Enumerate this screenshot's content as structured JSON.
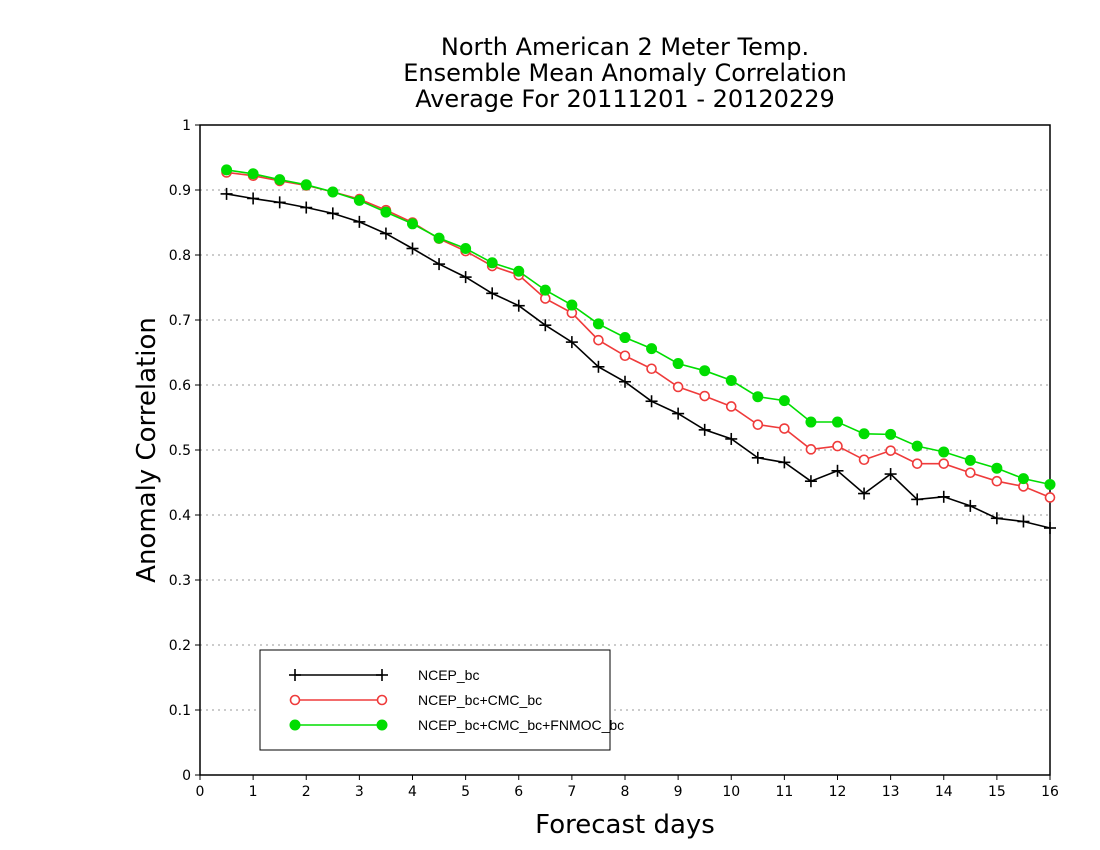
{
  "chart_data": {
    "type": "line",
    "title": [
      "North American 2 Meter Temp.",
      "Ensemble Mean Anomaly Correlation",
      "Average For 20111201 - 20120229"
    ],
    "xlabel": "Forecast days",
    "ylabel": "Anomaly Correlation",
    "xlim": [
      0,
      16
    ],
    "ylim": [
      0,
      1
    ],
    "xticks": [
      "0",
      "1",
      "2",
      "3",
      "4",
      "5",
      "6",
      "7",
      "8",
      "9",
      "10",
      "11",
      "12",
      "13",
      "14",
      "15",
      "16"
    ],
    "yticks": [
      "0",
      "0.1",
      "0.2",
      "0.3",
      "0.4",
      "0.5",
      "0.6",
      "0.7",
      "0.8",
      "0.9",
      "1"
    ],
    "grid": "dotted horizontal",
    "legend_position": "bottom-left",
    "x": [
      0.5,
      1,
      1.5,
      2,
      2.5,
      3,
      3.5,
      4,
      4.5,
      5,
      5.5,
      6,
      6.5,
      7,
      7.5,
      8,
      8.5,
      9,
      9.5,
      10,
      10.5,
      11,
      11.5,
      12,
      12.5,
      13,
      13.5,
      14,
      14.5,
      15,
      15.5,
      16
    ],
    "series": [
      {
        "name": "NCEP_bc",
        "color": "#000000",
        "marker": "plus",
        "values": [
          0.894,
          0.887,
          0.881,
          0.873,
          0.864,
          0.851,
          0.833,
          0.81,
          0.786,
          0.766,
          0.741,
          0.722,
          0.692,
          0.666,
          0.628,
          0.605,
          0.575,
          0.556,
          0.531,
          0.517,
          0.488,
          0.481,
          0.452,
          0.468,
          0.433,
          0.463,
          0.424,
          0.428,
          0.414,
          0.395,
          0.39,
          0.38
        ]
      },
      {
        "name": "NCEP_bc+CMC_bc",
        "color": "#ef3b3b",
        "marker": "open-circle",
        "values": [
          0.927,
          0.922,
          0.914,
          0.907,
          0.897,
          0.886,
          0.869,
          0.85,
          0.825,
          0.806,
          0.783,
          0.769,
          0.733,
          0.711,
          0.669,
          0.645,
          0.625,
          0.597,
          0.583,
          0.567,
          0.539,
          0.533,
          0.501,
          0.506,
          0.485,
          0.499,
          0.479,
          0.479,
          0.465,
          0.452,
          0.444,
          0.427
        ]
      },
      {
        "name": "NCEP_bc+CMC_bc+FNMOC_bc",
        "color": "#00dd00",
        "marker": "filled-circle",
        "values": [
          0.931,
          0.925,
          0.916,
          0.908,
          0.897,
          0.884,
          0.866,
          0.848,
          0.826,
          0.81,
          0.788,
          0.775,
          0.746,
          0.723,
          0.694,
          0.673,
          0.656,
          0.633,
          0.622,
          0.607,
          0.582,
          0.576,
          0.543,
          0.543,
          0.525,
          0.524,
          0.506,
          0.497,
          0.484,
          0.472,
          0.456,
          0.447
        ]
      }
    ]
  }
}
